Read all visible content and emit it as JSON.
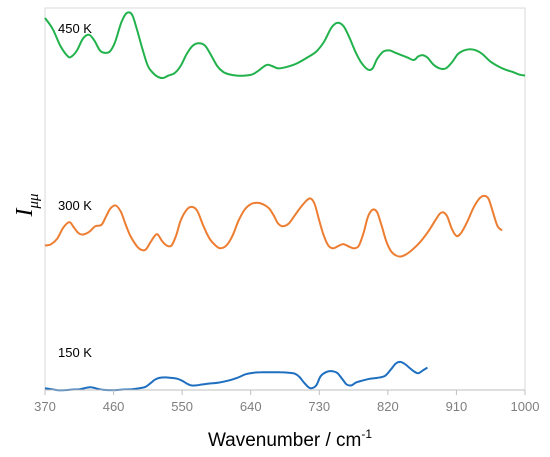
{
  "chart_data": {
    "type": "line",
    "title": "",
    "xlabel": "Wavenumber / cm",
    "xlabel_sup": "-1",
    "ylabel": "I",
    "ylabel_sub": "μμ",
    "xlim": [
      370,
      1000
    ],
    "xticks": [
      370,
      460,
      550,
      640,
      730,
      820,
      910,
      1000
    ],
    "x_ticks_labels": [
      "370",
      "460",
      "550",
      "640",
      "730",
      "820",
      "910",
      "1000"
    ],
    "y_axis_ticks": false,
    "grid": false,
    "legend": "none",
    "series": [
      {
        "name": "450 K",
        "color": "#22b24c",
        "points": [
          [
            370,
            0.95
          ],
          [
            380,
            0.86
          ],
          [
            390,
            0.72
          ],
          [
            400,
            0.63
          ],
          [
            405,
            0.63
          ],
          [
            412,
            0.68
          ],
          [
            420,
            0.78
          ],
          [
            428,
            0.81
          ],
          [
            435,
            0.76
          ],
          [
            442,
            0.68
          ],
          [
            448,
            0.66
          ],
          [
            455,
            0.67
          ],
          [
            462,
            0.75
          ],
          [
            470,
            0.91
          ],
          [
            477,
            0.99
          ],
          [
            484,
            0.98
          ],
          [
            490,
            0.87
          ],
          [
            498,
            0.69
          ],
          [
            505,
            0.55
          ],
          [
            512,
            0.49
          ],
          [
            518,
            0.46
          ],
          [
            525,
            0.45
          ],
          [
            532,
            0.47
          ],
          [
            540,
            0.49
          ],
          [
            548,
            0.55
          ],
          [
            556,
            0.65
          ],
          [
            564,
            0.72
          ],
          [
            572,
            0.74
          ],
          [
            580,
            0.72
          ],
          [
            588,
            0.64
          ],
          [
            596,
            0.55
          ],
          [
            604,
            0.5
          ],
          [
            612,
            0.48
          ],
          [
            622,
            0.47
          ],
          [
            632,
            0.47
          ],
          [
            642,
            0.48
          ],
          [
            650,
            0.51
          ],
          [
            656,
            0.54
          ],
          [
            662,
            0.56
          ],
          [
            668,
            0.55
          ],
          [
            676,
            0.53
          ],
          [
            686,
            0.54
          ],
          [
            700,
            0.57
          ],
          [
            714,
            0.62
          ],
          [
            726,
            0.67
          ],
          [
            736,
            0.75
          ],
          [
            746,
            0.87
          ],
          [
            754,
            0.91
          ],
          [
            762,
            0.88
          ],
          [
            770,
            0.78
          ],
          [
            778,
            0.66
          ],
          [
            786,
            0.57
          ],
          [
            794,
            0.52
          ],
          [
            800,
            0.53
          ],
          [
            806,
            0.61
          ],
          [
            814,
            0.67
          ],
          [
            822,
            0.68
          ],
          [
            830,
            0.66
          ],
          [
            838,
            0.64
          ],
          [
            846,
            0.62
          ],
          [
            854,
            0.6
          ],
          [
            860,
            0.63
          ],
          [
            866,
            0.64
          ],
          [
            872,
            0.62
          ],
          [
            880,
            0.56
          ],
          [
            888,
            0.53
          ],
          [
            896,
            0.53
          ],
          [
            904,
            0.58
          ],
          [
            912,
            0.65
          ],
          [
            920,
            0.68
          ],
          [
            928,
            0.69
          ],
          [
            936,
            0.68
          ],
          [
            944,
            0.65
          ],
          [
            954,
            0.59
          ],
          [
            964,
            0.55
          ],
          [
            974,
            0.52
          ],
          [
            984,
            0.5
          ],
          [
            992,
            0.48
          ],
          [
            1000,
            0.47
          ]
        ]
      },
      {
        "name": "300 K",
        "color": "#ed7d31",
        "points": [
          [
            370,
            0.38
          ],
          [
            378,
            0.39
          ],
          [
            386,
            0.43
          ],
          [
            394,
            0.51
          ],
          [
            402,
            0.55
          ],
          [
            408,
            0.51
          ],
          [
            414,
            0.47
          ],
          [
            420,
            0.46
          ],
          [
            428,
            0.48
          ],
          [
            436,
            0.52
          ],
          [
            444,
            0.53
          ],
          [
            450,
            0.59
          ],
          [
            456,
            0.65
          ],
          [
            463,
            0.67
          ],
          [
            470,
            0.62
          ],
          [
            476,
            0.53
          ],
          [
            482,
            0.45
          ],
          [
            490,
            0.38
          ],
          [
            496,
            0.35
          ],
          [
            502,
            0.35
          ],
          [
            508,
            0.4
          ],
          [
            514,
            0.45
          ],
          [
            518,
            0.46
          ],
          [
            524,
            0.41
          ],
          [
            530,
            0.38
          ],
          [
            536,
            0.38
          ],
          [
            542,
            0.45
          ],
          [
            548,
            0.56
          ],
          [
            556,
            0.64
          ],
          [
            563,
            0.66
          ],
          [
            570,
            0.63
          ],
          [
            578,
            0.52
          ],
          [
            586,
            0.43
          ],
          [
            594,
            0.38
          ],
          [
            600,
            0.36
          ],
          [
            608,
            0.38
          ],
          [
            616,
            0.45
          ],
          [
            624,
            0.56
          ],
          [
            632,
            0.64
          ],
          [
            640,
            0.68
          ],
          [
            648,
            0.69
          ],
          [
            656,
            0.68
          ],
          [
            664,
            0.65
          ],
          [
            670,
            0.6
          ],
          [
            676,
            0.54
          ],
          [
            682,
            0.52
          ],
          [
            690,
            0.54
          ],
          [
            698,
            0.6
          ],
          [
            706,
            0.66
          ],
          [
            714,
            0.71
          ],
          [
            719,
            0.72
          ],
          [
            724,
            0.68
          ],
          [
            730,
            0.56
          ],
          [
            736,
            0.45
          ],
          [
            742,
            0.38
          ],
          [
            748,
            0.36
          ],
          [
            756,
            0.38
          ],
          [
            762,
            0.39
          ],
          [
            770,
            0.37
          ],
          [
            776,
            0.36
          ],
          [
            782,
            0.38
          ],
          [
            788,
            0.47
          ],
          [
            794,
            0.59
          ],
          [
            800,
            0.64
          ],
          [
            806,
            0.62
          ],
          [
            812,
            0.52
          ],
          [
            818,
            0.41
          ],
          [
            824,
            0.34
          ],
          [
            830,
            0.31
          ],
          [
            836,
            0.3
          ],
          [
            842,
            0.31
          ],
          [
            850,
            0.34
          ],
          [
            858,
            0.38
          ],
          [
            866,
            0.43
          ],
          [
            874,
            0.49
          ],
          [
            882,
            0.56
          ],
          [
            888,
            0.61
          ],
          [
            893,
            0.62
          ],
          [
            898,
            0.59
          ],
          [
            904,
            0.5
          ],
          [
            910,
            0.45
          ],
          [
            916,
            0.47
          ],
          [
            924,
            0.55
          ],
          [
            932,
            0.65
          ],
          [
            940,
            0.72
          ],
          [
            946,
            0.74
          ],
          [
            952,
            0.72
          ],
          [
            958,
            0.62
          ],
          [
            964,
            0.52
          ],
          [
            970,
            0.49
          ]
        ]
      },
      {
        "name": "150 K",
        "color": "#1f6fc0",
        "points": [
          [
            370,
            0.04
          ],
          [
            378,
            0.03
          ],
          [
            386,
            0.02
          ],
          [
            396,
            0.02
          ],
          [
            406,
            0.025
          ],
          [
            416,
            0.03
          ],
          [
            424,
            0.045
          ],
          [
            430,
            0.05
          ],
          [
            436,
            0.04
          ],
          [
            444,
            0.025
          ],
          [
            452,
            0.02
          ],
          [
            462,
            0.02
          ],
          [
            472,
            0.025
          ],
          [
            484,
            0.03
          ],
          [
            494,
            0.04
          ],
          [
            502,
            0.055
          ],
          [
            508,
            0.09
          ],
          [
            514,
            0.13
          ],
          [
            520,
            0.15
          ],
          [
            528,
            0.155
          ],
          [
            536,
            0.15
          ],
          [
            544,
            0.14
          ],
          [
            550,
            0.12
          ],
          [
            556,
            0.09
          ],
          [
            562,
            0.07
          ],
          [
            568,
            0.07
          ],
          [
            576,
            0.08
          ],
          [
            586,
            0.09
          ],
          [
            598,
            0.1
          ],
          [
            610,
            0.12
          ],
          [
            622,
            0.15
          ],
          [
            634,
            0.19
          ],
          [
            644,
            0.205
          ],
          [
            654,
            0.21
          ],
          [
            666,
            0.21
          ],
          [
            678,
            0.21
          ],
          [
            690,
            0.205
          ],
          [
            698,
            0.195
          ],
          [
            704,
            0.16
          ],
          [
            710,
            0.1
          ],
          [
            716,
            0.05
          ],
          [
            720,
            0.04
          ],
          [
            726,
            0.07
          ],
          [
            732,
            0.17
          ],
          [
            740,
            0.215
          ],
          [
            748,
            0.22
          ],
          [
            754,
            0.2
          ],
          [
            760,
            0.14
          ],
          [
            766,
            0.08
          ],
          [
            772,
            0.07
          ],
          [
            778,
            0.1
          ],
          [
            786,
            0.12
          ],
          [
            796,
            0.14
          ],
          [
            806,
            0.15
          ],
          [
            816,
            0.17
          ],
          [
            824,
            0.24
          ],
          [
            830,
            0.3
          ],
          [
            836,
            0.32
          ],
          [
            842,
            0.3
          ],
          [
            848,
            0.26
          ],
          [
            854,
            0.22
          ],
          [
            860,
            0.2
          ],
          [
            866,
            0.23
          ],
          [
            872,
            0.26
          ]
        ]
      }
    ]
  }
}
